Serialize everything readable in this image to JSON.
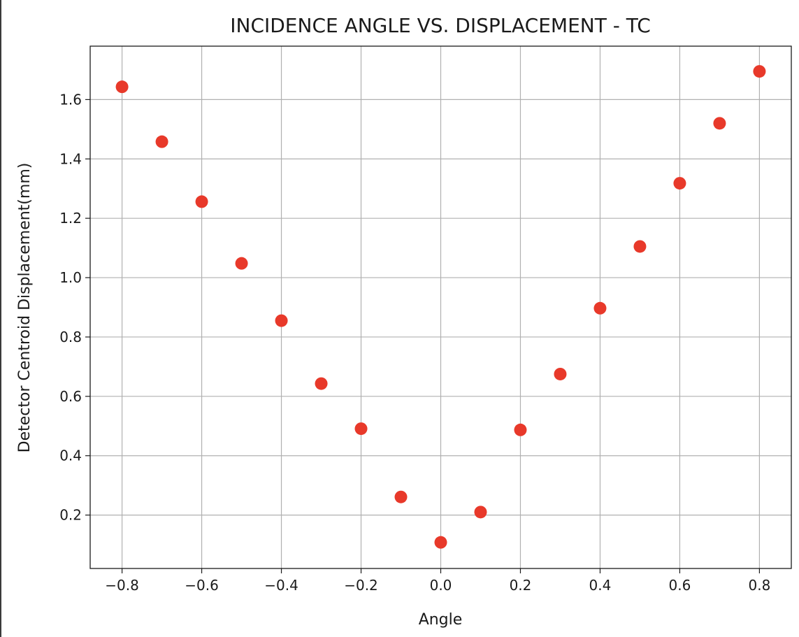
{
  "chart_data": {
    "type": "scatter",
    "title": "INCIDENCE ANGLE VS. DISPLACEMENT - TC",
    "xlabel": "Angle",
    "ylabel": "Detector Centroid Displacement(mm)",
    "xlim": [
      -0.88,
      0.88
    ],
    "ylim": [
      0.02,
      1.78
    ],
    "xticks": [
      -0.8,
      -0.6,
      -0.4,
      -0.2,
      0.0,
      0.2,
      0.4,
      0.6,
      0.8
    ],
    "xtick_labels": [
      "−0.8",
      "−0.6",
      "−0.4",
      "−0.2",
      "0.0",
      "0.2",
      "0.4",
      "0.6",
      "0.8"
    ],
    "yticks": [
      0.2,
      0.4,
      0.6,
      0.8,
      1.0,
      1.2,
      1.4,
      1.6
    ],
    "ytick_labels": [
      "0.2",
      "0.4",
      "0.6",
      "0.8",
      "1.0",
      "1.2",
      "1.4",
      "1.6"
    ],
    "grid": true,
    "marker_color": "#e8392a",
    "points": [
      {
        "x": -0.8,
        "y": 1.643
      },
      {
        "x": -0.7,
        "y": 1.458
      },
      {
        "x": -0.6,
        "y": 1.256
      },
      {
        "x": -0.5,
        "y": 1.048
      },
      {
        "x": -0.4,
        "y": 0.855
      },
      {
        "x": -0.3,
        "y": 0.643
      },
      {
        "x": -0.2,
        "y": 0.491
      },
      {
        "x": -0.1,
        "y": 0.261
      },
      {
        "x": 0.0,
        "y": 0.108
      },
      {
        "x": 0.1,
        "y": 0.21
      },
      {
        "x": 0.2,
        "y": 0.487
      },
      {
        "x": 0.3,
        "y": 0.675
      },
      {
        "x": 0.4,
        "y": 0.897
      },
      {
        "x": 0.5,
        "y": 1.105
      },
      {
        "x": 0.6,
        "y": 1.318
      },
      {
        "x": 0.7,
        "y": 1.52
      },
      {
        "x": 0.8,
        "y": 1.695
      }
    ]
  }
}
